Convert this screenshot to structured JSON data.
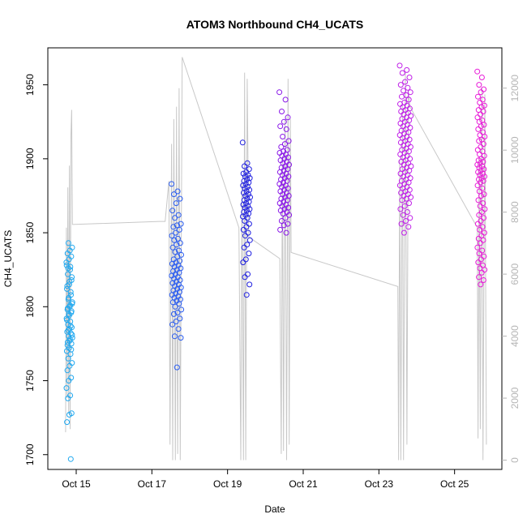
{
  "chart_data": {
    "type": "scatter",
    "title": "ATOM3 Northbound CH4_UCATS",
    "xlabel": "Date",
    "ylabel": "CH4_UCATS",
    "x_range_days": [
      14.25,
      26.25
    ],
    "x_ticks": [
      {
        "day": 15,
        "label": "Oct 15"
      },
      {
        "day": 17,
        "label": "Oct 17"
      },
      {
        "day": 19,
        "label": "Oct 19"
      },
      {
        "day": 21,
        "label": "Oct 21"
      },
      {
        "day": 23,
        "label": "Oct 23"
      },
      {
        "day": 25,
        "label": "Oct 25"
      }
    ],
    "ylim": [
      1690,
      1975
    ],
    "y_ticks": [
      "1700",
      "1750",
      "1800",
      "1850",
      "1900",
      "1950"
    ],
    "y2lim": [
      -300,
      13300
    ],
    "y2_ticks": [
      "0",
      "2000",
      "4000",
      "6000",
      "8000",
      "10000",
      "12000"
    ],
    "grid": false,
    "series": [
      {
        "kind": "scatter",
        "color_scale": [
          "#1fa8f0",
          "#2a5cf0",
          "#2020e0",
          "#8a18e8",
          "#c020e8",
          "#e81cd8"
        ],
        "clusters": [
          {
            "x_center": 14.82,
            "x_spread": 0.08,
            "y": [
              1830,
              1825,
              1822,
              1818,
              1815,
              1812,
              1810,
              1805,
              1802,
              1800,
              1798,
              1796,
              1795,
              1792,
              1790,
              1788,
              1786,
              1785,
              1783,
              1782,
              1780,
              1779,
              1778,
              1776,
              1775,
              1772,
              1770,
              1768,
              1765,
              1762,
              1760,
              1757,
              1752,
              1750,
              1745,
              1740,
              1738,
              1728,
              1727,
              1722,
              1697,
              1843,
              1840,
              1838,
              1836,
              1834,
              1832,
              1828,
              1827,
              1826,
              1820,
              1817,
              1814,
              1808,
              1806,
              1803,
              1801,
              1799,
              1797,
              1794,
              1791,
              1787,
              1784,
              1781,
              1777,
              1774,
              1771
            ]
          },
          {
            "x_center": 17.65,
            "x_spread": 0.13,
            "y": [
              1883,
              1878,
              1876,
              1873,
              1870,
              1865,
              1862,
              1860,
              1856,
              1855,
              1854,
              1852,
              1850,
              1848,
              1846,
              1845,
              1843,
              1842,
              1840,
              1838,
              1837,
              1835,
              1834,
              1832,
              1831,
              1830,
              1829,
              1828,
              1827,
              1826,
              1825,
              1824,
              1823,
              1822,
              1821,
              1820,
              1819,
              1818,
              1817,
              1816,
              1815,
              1814,
              1813,
              1812,
              1811,
              1810,
              1809,
              1808,
              1807,
              1806,
              1805,
              1804,
              1803,
              1802,
              1800,
              1798,
              1796,
              1795,
              1792,
              1790,
              1788,
              1785,
              1780,
              1779,
              1759
            ]
          },
          {
            "x_center": 19.5,
            "x_spread": 0.1,
            "y": [
              1911,
              1897,
              1895,
              1893,
              1891,
              1890,
              1889,
              1888,
              1887,
              1886,
              1885,
              1884,
              1883,
              1882,
              1881,
              1880,
              1879,
              1878,
              1877,
              1876,
              1875,
              1874,
              1873,
              1872,
              1871,
              1870,
              1869,
              1868,
              1867,
              1866,
              1865,
              1864,
              1863,
              1862,
              1861,
              1860,
              1858,
              1856,
              1854,
              1852,
              1850,
              1848,
              1845,
              1842,
              1840,
              1836,
              1832,
              1830,
              1822,
              1820,
              1815,
              1808
            ]
          },
          {
            "x_center": 20.5,
            "x_spread": 0.13,
            "y": [
              1945,
              1940,
              1932,
              1928,
              1925,
              1922,
              1920,
              1915,
              1912,
              1910,
              1908,
              1906,
              1905,
              1904,
              1903,
              1902,
              1901,
              1900,
              1899,
              1898,
              1897,
              1896,
              1895,
              1894,
              1893,
              1892,
              1891,
              1890,
              1889,
              1888,
              1887,
              1886,
              1885,
              1884,
              1883,
              1882,
              1881,
              1880,
              1879,
              1878,
              1877,
              1876,
              1875,
              1874,
              1873,
              1872,
              1871,
              1870,
              1869,
              1868,
              1867,
              1866,
              1865,
              1864,
              1863,
              1862,
              1860,
              1858,
              1856,
              1855,
              1852,
              1850
            ]
          },
          {
            "x_center": 23.7,
            "x_spread": 0.15,
            "y": [
              1963,
              1960,
              1958,
              1955,
              1952,
              1950,
              1948,
              1946,
              1945,
              1943,
              1942,
              1940,
              1938,
              1937,
              1936,
              1935,
              1934,
              1933,
              1932,
              1931,
              1930,
              1929,
              1928,
              1927,
              1926,
              1925,
              1924,
              1923,
              1922,
              1921,
              1920,
              1919,
              1918,
              1917,
              1916,
              1915,
              1914,
              1913,
              1912,
              1911,
              1910,
              1909,
              1908,
              1907,
              1906,
              1905,
              1904,
              1903,
              1902,
              1901,
              1900,
              1899,
              1898,
              1897,
              1896,
              1895,
              1894,
              1893,
              1892,
              1891,
              1890,
              1889,
              1888,
              1887,
              1886,
              1885,
              1884,
              1883,
              1882,
              1881,
              1880,
              1879,
              1878,
              1877,
              1876,
              1875,
              1874,
              1873,
              1872,
              1870,
              1868,
              1866,
              1864,
              1862,
              1860,
              1858,
              1856,
              1854,
              1850
            ]
          },
          {
            "x_center": 25.7,
            "x_spread": 0.1,
            "y": [
              1959,
              1955,
              1950,
              1947,
              1945,
              1942,
              1940,
              1938,
              1936,
              1935,
              1933,
              1932,
              1930,
              1928,
              1926,
              1925,
              1923,
              1922,
              1920,
              1918,
              1916,
              1915,
              1913,
              1912,
              1910,
              1908,
              1906,
              1905,
              1903,
              1902,
              1900,
              1899,
              1898,
              1897,
              1896,
              1895,
              1894,
              1893,
              1892,
              1891,
              1890,
              1889,
              1888,
              1887,
              1886,
              1885,
              1884,
              1882,
              1880,
              1878,
              1876,
              1875,
              1872,
              1870,
              1868,
              1866,
              1864,
              1862,
              1860,
              1858,
              1856,
              1854,
              1852,
              1850,
              1848,
              1846,
              1845,
              1843,
              1840,
              1838,
              1836,
              1834,
              1832,
              1830,
              1828,
              1826,
              1825,
              1823,
              1820,
              1818,
              1815
            ]
          }
        ]
      },
      {
        "kind": "line",
        "axis": "right",
        "color": "#c8c8c8",
        "points": [
          [
            14.72,
            900
          ],
          [
            14.74,
            7500
          ],
          [
            14.76,
            2000
          ],
          [
            14.78,
            8800
          ],
          [
            14.8,
            1500
          ],
          [
            14.82,
            9500
          ],
          [
            14.84,
            1000
          ],
          [
            14.86,
            10500
          ],
          [
            14.88,
            11300
          ],
          [
            14.9,
            7600
          ],
          [
            17.2,
            7700
          ],
          [
            17.35,
            7700
          ],
          [
            17.45,
            9000
          ],
          [
            17.48,
            500
          ],
          [
            17.52,
            10200
          ],
          [
            17.55,
            0
          ],
          [
            17.58,
            11000
          ],
          [
            17.62,
            0
          ],
          [
            17.65,
            11400
          ],
          [
            17.68,
            200
          ],
          [
            17.72,
            12000
          ],
          [
            17.75,
            0
          ],
          [
            17.8,
            13000
          ],
          [
            19.3,
            7500
          ],
          [
            19.35,
            0
          ],
          [
            19.38,
            9000
          ],
          [
            19.42,
            0
          ],
          [
            19.45,
            12500
          ],
          [
            19.48,
            0
          ],
          [
            19.52,
            12300
          ],
          [
            19.56,
            7200
          ],
          [
            20.38,
            6500
          ],
          [
            20.42,
            200
          ],
          [
            20.45,
            9800
          ],
          [
            20.48,
            300
          ],
          [
            20.52,
            11000
          ],
          [
            20.56,
            0
          ],
          [
            20.6,
            12300
          ],
          [
            20.63,
            500
          ],
          [
            20.66,
            11000
          ],
          [
            20.68,
            6700
          ],
          [
            23.5,
            5600
          ],
          [
            23.52,
            0
          ],
          [
            23.55,
            9700
          ],
          [
            23.58,
            0
          ],
          [
            23.62,
            11500
          ],
          [
            23.65,
            0
          ],
          [
            23.7,
            12500
          ],
          [
            23.74,
            500
          ],
          [
            23.78,
            11900
          ],
          [
            23.82,
            11400
          ],
          [
            25.6,
            7500
          ],
          [
            25.62,
            700
          ],
          [
            25.65,
            9800
          ],
          [
            25.68,
            1000
          ],
          [
            25.72,
            12000
          ],
          [
            25.75,
            0
          ],
          [
            25.8,
            11800
          ],
          [
            25.84,
            500
          ]
        ]
      }
    ]
  }
}
